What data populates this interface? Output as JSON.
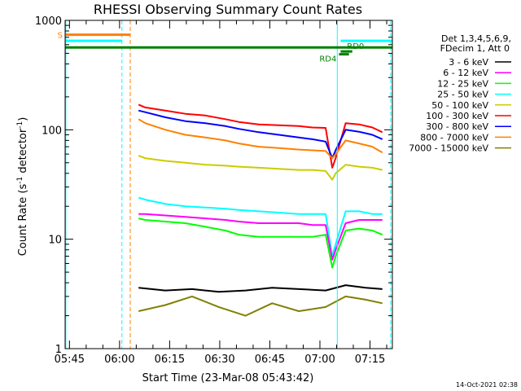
{
  "chart_data": {
    "type": "line",
    "title": "RHESSI Observing Summary Count Rates",
    "xlabel": "Start Time (23-Mar-08 05:43:42)",
    "ylabel_prefix": "Count Rate (s",
    "ylabel_sup1": "-1",
    "ylabel_mid": " detector",
    "ylabel_sup2": "-1",
    "ylabel_suffix": ")",
    "yscale": "log",
    "ylim": [
      1,
      1000
    ],
    "xlim_minutes": [
      0,
      98
    ],
    "y_ticks": [
      {
        "value": 1,
        "label": "1"
      },
      {
        "value": 10,
        "label": "10"
      },
      {
        "value": 100,
        "label": "100"
      },
      {
        "value": 1000,
        "label": "1000"
      }
    ],
    "x_ticks": [
      {
        "min": 1.3,
        "label": "05:45"
      },
      {
        "min": 16.3,
        "label": "06:00"
      },
      {
        "min": 31.3,
        "label": "06:15"
      },
      {
        "min": 46.3,
        "label": "06:30"
      },
      {
        "min": 61.3,
        "label": "06:45"
      },
      {
        "min": 76.3,
        "label": "07:00"
      },
      {
        "min": 91.3,
        "label": "07:15"
      }
    ],
    "legend_header": [
      "Det 1,3,4,5,6,9,",
      "FDecim 1, Att 0"
    ],
    "series": [
      {
        "name": "3 - 6 keV",
        "color": "#000000"
      },
      {
        "name": "6 - 12 keV",
        "color": "#ff00ff"
      },
      {
        "name": "12 - 25 keV",
        "color": "#00ff00"
      },
      {
        "name": "25 - 50 keV",
        "color": "#00ffff"
      },
      {
        "name": "50 - 100 keV",
        "color": "#cccc00"
      },
      {
        "name": "100 - 300 keV",
        "color": "#ff0000"
      },
      {
        "name": "300 - 800 keV",
        "color": "#0000ff"
      },
      {
        "name": "800 - 7000 keV",
        "color": "#ff8000"
      },
      {
        "name": "7000 - 15000 keV",
        "color": "#808000"
      }
    ],
    "series_points": [
      {
        "name": "100 - 300 keV",
        "x": [
          22,
          24,
          30,
          36,
          42,
          48,
          52,
          58,
          64,
          70,
          74,
          78,
          80,
          81,
          84,
          88,
          92,
          95
        ],
        "y": [
          170,
          160,
          150,
          140,
          135,
          125,
          118,
          112,
          110,
          108,
          105,
          104,
          45,
          55,
          115,
          112,
          105,
          95
        ]
      },
      {
        "name": "300 - 800 keV",
        "x": [
          22,
          24,
          30,
          36,
          42,
          48,
          52,
          58,
          64,
          70,
          74,
          78,
          80,
          81,
          84,
          88,
          92,
          95
        ],
        "y": [
          150,
          145,
          130,
          120,
          115,
          108,
          102,
          95,
          90,
          85,
          82,
          78,
          55,
          65,
          100,
          96,
          90,
          82
        ]
      },
      {
        "name": "800 - 7000 keV",
        "x": [
          22,
          24,
          30,
          36,
          42,
          48,
          52,
          58,
          64,
          70,
          74,
          78,
          80,
          81,
          84,
          88,
          92,
          95
        ],
        "y": [
          125,
          115,
          100,
          90,
          85,
          80,
          75,
          70,
          68,
          66,
          65,
          64,
          55,
          60,
          80,
          75,
          70,
          62
        ]
      },
      {
        "name": "50 - 100 keV",
        "x": [
          22,
          24,
          30,
          36,
          42,
          48,
          52,
          58,
          64,
          70,
          74,
          78,
          80,
          81,
          84,
          88,
          92,
          95
        ],
        "y": [
          58,
          55,
          52,
          50,
          48,
          47,
          46,
          45,
          44,
          43,
          43,
          42,
          35,
          40,
          48,
          46,
          45,
          43
        ]
      },
      {
        "name": "25 - 50 keV",
        "x": [
          22,
          24,
          30,
          36,
          42,
          48,
          52,
          58,
          64,
          70,
          74,
          78,
          80,
          81,
          84,
          88,
          92,
          95
        ],
        "y": [
          24,
          23,
          21,
          20,
          19.5,
          19,
          18.5,
          18,
          17.5,
          17,
          17,
          17,
          7,
          9,
          18,
          18,
          17,
          17
        ]
      },
      {
        "name": "6 - 12 keV",
        "x": [
          22,
          24,
          30,
          36,
          42,
          48,
          52,
          58,
          64,
          70,
          74,
          78,
          80,
          81,
          84,
          88,
          92,
          95
        ],
        "y": [
          17,
          17,
          16.5,
          16,
          15.5,
          15,
          14.5,
          14,
          14,
          14,
          13.5,
          13.5,
          6.5,
          8,
          14,
          15,
          15,
          15
        ]
      },
      {
        "name": "12 - 25 keV",
        "x": [
          22,
          24,
          30,
          36,
          42,
          48,
          52,
          58,
          64,
          70,
          74,
          78,
          80,
          81,
          84,
          88,
          92,
          95
        ],
        "y": [
          15.5,
          15,
          14.5,
          14,
          13,
          12,
          11,
          10.5,
          10.5,
          10.5,
          10.5,
          11,
          5.5,
          7,
          12,
          12.5,
          12,
          11
        ]
      },
      {
        "name": "3 - 6 keV",
        "x": [
          22,
          30,
          38,
          46,
          54,
          62,
          70,
          78,
          84,
          90,
          95
        ],
        "y": [
          3.6,
          3.4,
          3.5,
          3.3,
          3.4,
          3.6,
          3.5,
          3.4,
          3.8,
          3.6,
          3.5
        ]
      },
      {
        "name": "7000 - 15000 keV",
        "x": [
          22,
          30,
          38,
          46,
          54,
          62,
          70,
          78,
          84,
          90,
          95
        ],
        "y": [
          2.2,
          2.5,
          3.0,
          2.4,
          2.0,
          2.6,
          2.2,
          2.4,
          3.0,
          2.8,
          2.6
        ]
      }
    ],
    "flags": [
      {
        "label": "S",
        "color": "#ff8000",
        "y_value": 740,
        "start_min": 0,
        "end_min": 19.5
      },
      {
        "label": "",
        "color": "#00ffff",
        "y_value": 650,
        "start_min": 0,
        "end_min": 17
      },
      {
        "label": "",
        "color": "#00ffff",
        "y_value": 650,
        "start_min": 82.5,
        "end_min": 98
      },
      {
        "label": "",
        "color": "#008000",
        "y_value": 565,
        "start_min": 0,
        "end_min": 98
      },
      {
        "label": "RD4",
        "color": "#008000",
        "y_value": 490,
        "start_min": 82,
        "end_min": 85
      },
      {
        "label": "RD0",
        "color": "#008000",
        "y_value": 520,
        "start_min": 82.5,
        "end_min": 86
      }
    ],
    "vlines": [
      {
        "min": 0.2,
        "color": "#00ffff",
        "style": "solid"
      },
      {
        "min": 17.0,
        "color": "#00ffff",
        "style": "dashed"
      },
      {
        "min": 19.5,
        "color": "#ff8000",
        "style": "dashed"
      },
      {
        "min": 81.5,
        "color": "#00ffff",
        "style": "solid"
      },
      {
        "min": 97.5,
        "color": "#00ffff",
        "style": "dashed"
      }
    ],
    "footer": "14-Oct-2021 02:38"
  }
}
